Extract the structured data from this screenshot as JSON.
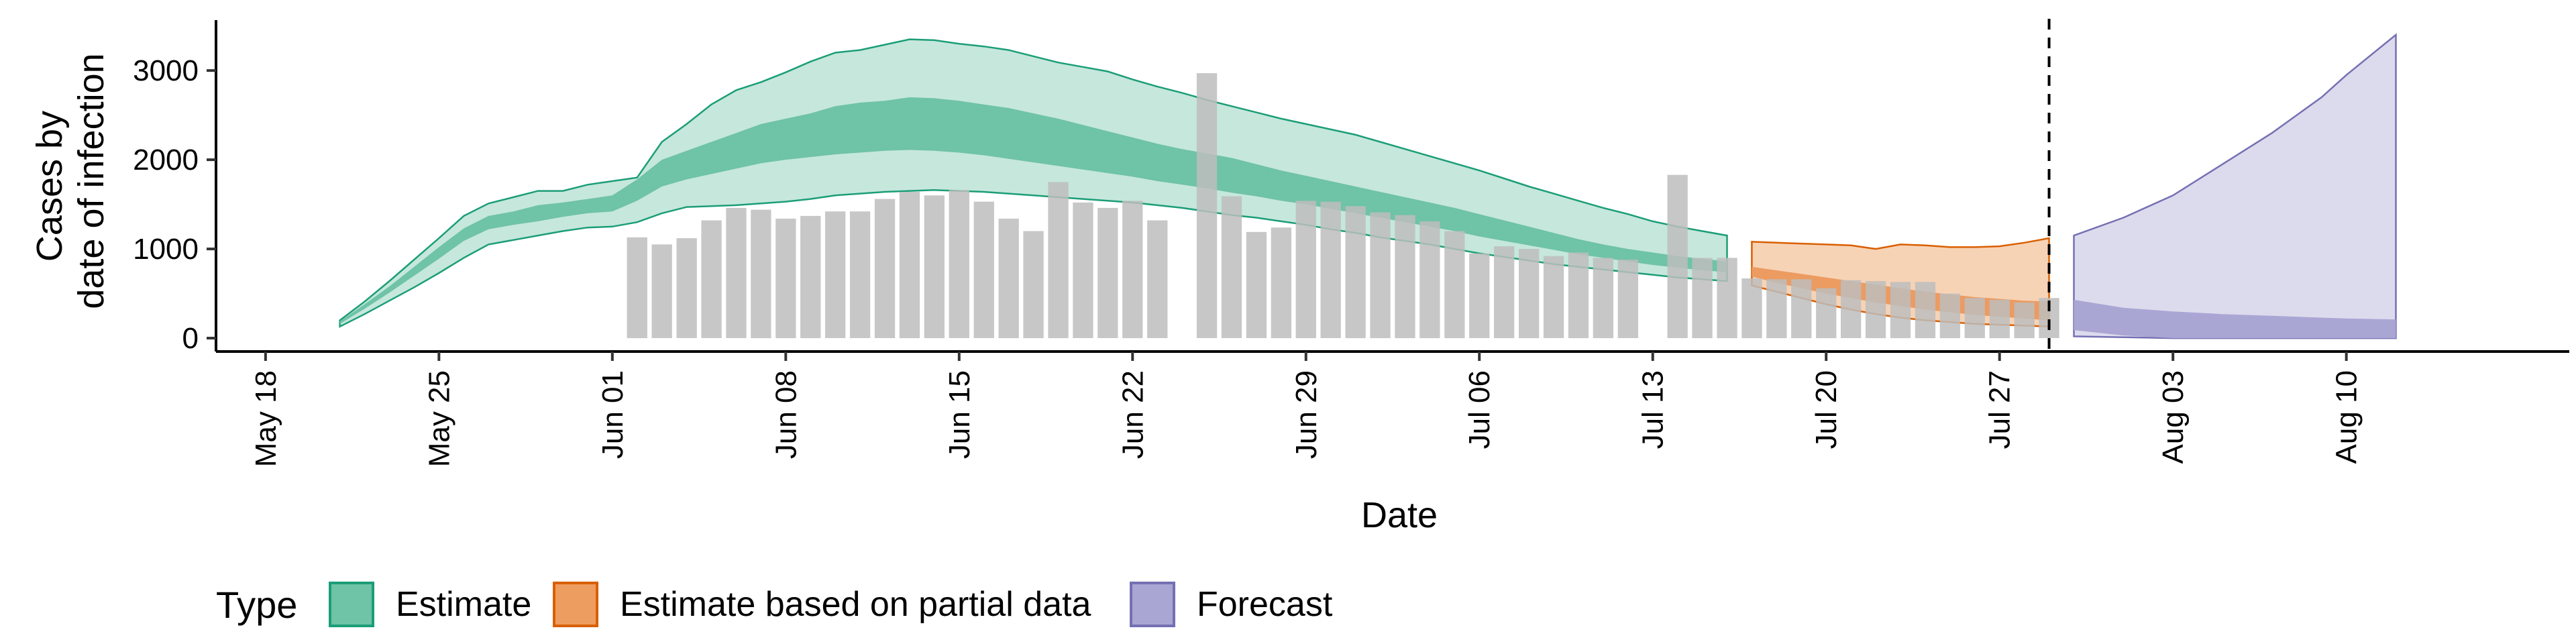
{
  "chart_data": {
    "type": "area",
    "xlabel": "Date",
    "ylabel_lines": [
      "Cases by",
      "date of infection"
    ],
    "ylim": [
      -150,
      3550
    ],
    "yticks": [
      0,
      1000,
      2000,
      3000
    ],
    "xticks": [
      {
        "date": "2020-05-18",
        "label": "May 18"
      },
      {
        "date": "2020-05-25",
        "label": "May 25"
      },
      {
        "date": "2020-06-01",
        "label": "Jun 01"
      },
      {
        "date": "2020-06-08",
        "label": "Jun 08"
      },
      {
        "date": "2020-06-15",
        "label": "Jun 15"
      },
      {
        "date": "2020-06-22",
        "label": "Jun 22"
      },
      {
        "date": "2020-06-29",
        "label": "Jun 29"
      },
      {
        "date": "2020-07-06",
        "label": "Jul 06"
      },
      {
        "date": "2020-07-13",
        "label": "Jul 13"
      },
      {
        "date": "2020-07-20",
        "label": "Jul 20"
      },
      {
        "date": "2020-07-27",
        "label": "Jul 27"
      },
      {
        "date": "2020-08-03",
        "label": "Aug 03"
      },
      {
        "date": "2020-08-10",
        "label": "Aug 10"
      }
    ],
    "xlim": [
      "2020-05-16",
      "2020-08-19"
    ],
    "vline_date": "2020-07-29",
    "legend": {
      "title": "Type",
      "placement": "bottom",
      "entries": [
        {
          "label": "Estimate",
          "fill": "#6fc3a6",
          "stroke": "#1b9e77"
        },
        {
          "label": "Estimate based on partial data",
          "fill": "#ee9d60",
          "stroke": "#d95f02"
        },
        {
          "label": "Forecast",
          "fill": "#aaa6d4",
          "stroke": "#7570b3"
        }
      ]
    },
    "colors": {
      "estimate_outer": "#c6e7dc",
      "estimate_inner": "#6fc3a6",
      "estimate_line": "#1b9e77",
      "partial_outer": "#f7d3b6",
      "partial_inner": "#ec9b61",
      "partial_line": "#d95f02",
      "forecast_outer": "#dcdbed",
      "forecast_inner": "#aaa6d4",
      "forecast_line": "#7570b3",
      "bars": "#bdbdbd"
    },
    "series": [
      {
        "type": "Estimate",
        "x": [
          "2020-05-21",
          "2020-05-22",
          "2020-05-23",
          "2020-05-24",
          "2020-05-25",
          "2020-05-26",
          "2020-05-27",
          "2020-05-28",
          "2020-05-29",
          "2020-05-30",
          "2020-05-31",
          "2020-06-01",
          "2020-06-02",
          "2020-06-03",
          "2020-06-04",
          "2020-06-05",
          "2020-06-06",
          "2020-06-07",
          "2020-06-08",
          "2020-06-09",
          "2020-06-10",
          "2020-06-11",
          "2020-06-12",
          "2020-06-13",
          "2020-06-14",
          "2020-06-15",
          "2020-06-16",
          "2020-06-17",
          "2020-06-18",
          "2020-06-19",
          "2020-06-20",
          "2020-06-21",
          "2020-06-22",
          "2020-06-23",
          "2020-06-24",
          "2020-06-25",
          "2020-06-26",
          "2020-06-27",
          "2020-06-28",
          "2020-06-29",
          "2020-06-30",
          "2020-07-01",
          "2020-07-02",
          "2020-07-03",
          "2020-07-04",
          "2020-07-05",
          "2020-07-06",
          "2020-07-07",
          "2020-07-08",
          "2020-07-09",
          "2020-07-10",
          "2020-07-11",
          "2020-07-12",
          "2020-07-13",
          "2020-07-14",
          "2020-07-15",
          "2020-07-16"
        ],
        "lower90": [
          130,
          270,
          420,
          570,
          730,
          900,
          1050,
          1100,
          1150,
          1200,
          1240,
          1250,
          1300,
          1400,
          1470,
          1480,
          1490,
          1510,
          1530,
          1560,
          1600,
          1620,
          1640,
          1650,
          1660,
          1650,
          1640,
          1620,
          1600,
          1580,
          1560,
          1540,
          1520,
          1490,
          1460,
          1420,
          1380,
          1350,
          1310,
          1270,
          1220,
          1180,
          1130,
          1090,
          1050,
          1000,
          950,
          910,
          870,
          830,
          800,
          770,
          740,
          710,
          680,
          660,
          640
        ],
        "lower50": [
          160,
          330,
          510,
          700,
          890,
          1090,
          1220,
          1270,
          1310,
          1360,
          1400,
          1420,
          1540,
          1700,
          1780,
          1840,
          1900,
          1960,
          2000,
          2030,
          2060,
          2080,
          2100,
          2110,
          2100,
          2080,
          2050,
          2010,
          1970,
          1930,
          1890,
          1850,
          1810,
          1760,
          1720,
          1680,
          1630,
          1590,
          1540,
          1500,
          1450,
          1400,
          1350,
          1300,
          1250,
          1200,
          1140,
          1090,
          1040,
          990,
          940,
          900,
          860,
          820,
          790,
          760,
          740
        ],
        "upper50": [
          190,
          380,
          580,
          800,
          1020,
          1230,
          1370,
          1420,
          1490,
          1520,
          1560,
          1600,
          1780,
          2000,
          2100,
          2200,
          2300,
          2400,
          2460,
          2520,
          2600,
          2640,
          2660,
          2700,
          2690,
          2660,
          2620,
          2580,
          2520,
          2460,
          2390,
          2320,
          2250,
          2180,
          2120,
          2070,
          2020,
          1950,
          1880,
          1820,
          1760,
          1700,
          1640,
          1580,
          1520,
          1460,
          1390,
          1320,
          1250,
          1180,
          1110,
          1050,
          1000,
          960,
          920,
          890,
          860
        ],
        "upper90": [
          200,
          410,
          640,
          880,
          1120,
          1370,
          1510,
          1580,
          1650,
          1650,
          1720,
          1760,
          1800,
          2200,
          2400,
          2620,
          2780,
          2870,
          2980,
          3100,
          3200,
          3230,
          3290,
          3350,
          3340,
          3300,
          3270,
          3230,
          3160,
          3090,
          3040,
          2990,
          2900,
          2820,
          2750,
          2670,
          2600,
          2530,
          2460,
          2400,
          2340,
          2280,
          2200,
          2120,
          2040,
          1960,
          1880,
          1790,
          1700,
          1620,
          1540,
          1460,
          1390,
          1310,
          1250,
          1200,
          1150
        ]
      },
      {
        "type": "Estimate based on partial data",
        "x": [
          "2020-07-17",
          "2020-07-18",
          "2020-07-19",
          "2020-07-20",
          "2020-07-21",
          "2020-07-22",
          "2020-07-23",
          "2020-07-24",
          "2020-07-25",
          "2020-07-26",
          "2020-07-27",
          "2020-07-28",
          "2020-07-29"
        ],
        "lower90": [
          590,
          520,
          450,
          380,
          320,
          270,
          230,
          200,
          180,
          160,
          150,
          140,
          130
        ],
        "lower50": [
          690,
          620,
          560,
          500,
          450,
          400,
          360,
          320,
          290,
          260,
          240,
          220,
          200
        ],
        "upper50": [
          800,
          760,
          720,
          680,
          640,
          600,
          560,
          520,
          490,
          460,
          440,
          420,
          410
        ],
        "upper90": [
          1080,
          1070,
          1060,
          1050,
          1040,
          1000,
          1050,
          1040,
          1020,
          1020,
          1030,
          1070,
          1120
        ]
      },
      {
        "type": "Forecast",
        "x": [
          "2020-07-30",
          "2020-08-01",
          "2020-08-03",
          "2020-08-05",
          "2020-08-07",
          "2020-08-09",
          "2020-08-10",
          "2020-08-12"
        ],
        "lower90": [
          20,
          10,
          0,
          0,
          0,
          0,
          0,
          0
        ],
        "lower50": [
          90,
          30,
          0,
          0,
          0,
          0,
          0,
          0
        ],
        "upper50": [
          430,
          340,
          300,
          270,
          250,
          230,
          220,
          210
        ],
        "upper90": [
          1150,
          1350,
          1600,
          1950,
          2300,
          2700,
          2950,
          3400
        ]
      }
    ],
    "bars": {
      "x": [
        "2020-06-02",
        "2020-06-03",
        "2020-06-04",
        "2020-06-05",
        "2020-06-06",
        "2020-06-07",
        "2020-06-08",
        "2020-06-09",
        "2020-06-10",
        "2020-06-11",
        "2020-06-12",
        "2020-06-13",
        "2020-06-14",
        "2020-06-15",
        "2020-06-16",
        "2020-06-17",
        "2020-06-18",
        "2020-06-19",
        "2020-06-20",
        "2020-06-21",
        "2020-06-22",
        "2020-06-23",
        "2020-06-25",
        "2020-06-26",
        "2020-06-27",
        "2020-06-28",
        "2020-06-29",
        "2020-06-30",
        "2020-07-01",
        "2020-07-02",
        "2020-07-03",
        "2020-07-04",
        "2020-07-05",
        "2020-07-06",
        "2020-07-07",
        "2020-07-08",
        "2020-07-09",
        "2020-07-10",
        "2020-07-11",
        "2020-07-12",
        "2020-07-14",
        "2020-07-15",
        "2020-07-16",
        "2020-07-17",
        "2020-07-18",
        "2020-07-19",
        "2020-07-20",
        "2020-07-21",
        "2020-07-22",
        "2020-07-23",
        "2020-07-24",
        "2020-07-25",
        "2020-07-26",
        "2020-07-27",
        "2020-07-28",
        "2020-07-29"
      ],
      "values": [
        1130,
        1050,
        1120,
        1320,
        1460,
        1440,
        1340,
        1370,
        1420,
        1420,
        1560,
        1640,
        1600,
        1660,
        1530,
        1340,
        1200,
        1750,
        1520,
        1460,
        1540,
        1320,
        2970,
        1590,
        1190,
        1240,
        1540,
        1530,
        1480,
        1410,
        1380,
        1310,
        1200,
        950,
        1030,
        1000,
        920,
        960,
        900,
        880,
        1830,
        900,
        900,
        670,
        660,
        660,
        560,
        650,
        640,
        630,
        630,
        500,
        450,
        430,
        400,
        450
      ]
    }
  }
}
